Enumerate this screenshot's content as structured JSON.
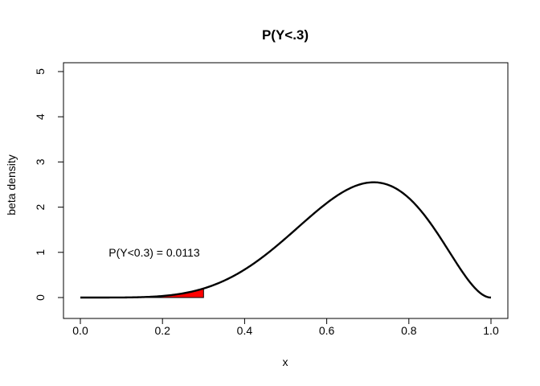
{
  "chart_data": {
    "type": "area",
    "title": "P(Y<.3)",
    "xlabel": "x",
    "ylabel": "beta density",
    "xlim": [
      0,
      1
    ],
    "ylim": [
      0,
      5
    ],
    "x_ticks": [
      "0.0",
      "0.2",
      "0.4",
      "0.6",
      "0.8",
      "1.0"
    ],
    "y_ticks": [
      "0",
      "1",
      "2",
      "3",
      "4",
      "5"
    ],
    "curve": {
      "distribution": "beta",
      "shape1": 6,
      "shape2": 3,
      "x": [
        0.0,
        0.05,
        0.1,
        0.15,
        0.2,
        0.25,
        0.3,
        0.35,
        0.4,
        0.45,
        0.5,
        0.55,
        0.6,
        0.65,
        0.7,
        0.75,
        0.8,
        0.85,
        0.9,
        0.95,
        1.0
      ],
      "y": [
        0.0,
        0.0001,
        0.002,
        0.0123,
        0.0459,
        0.1236,
        0.2668,
        0.4893,
        0.7963,
        1.1693,
        1.5625,
        1.9119,
        2.1499,
        2.2221,
        2.1176,
        1.8119,
        1.3631,
        0.8554,
        0.4044,
        0.1007,
        0.0
      ]
    },
    "shaded_region": {
      "from": 0,
      "to": 0.3,
      "color": "#ff0000"
    },
    "grid": false,
    "annotation": {
      "text": "P(Y<0.3) = 0.0113",
      "x": 0.18,
      "y": 1.0
    }
  }
}
